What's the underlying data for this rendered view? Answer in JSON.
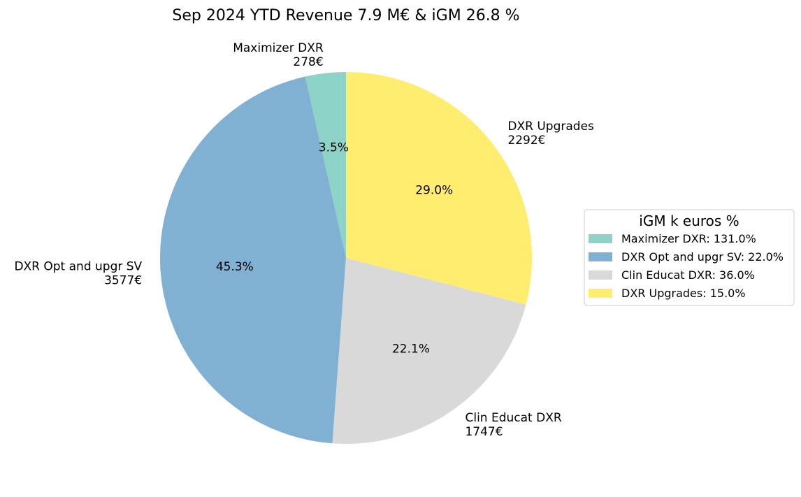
{
  "chart_data": {
    "type": "pie",
    "title": "Sep 2024 YTD Revenue 7.9 M€ & iGM 26.8 %",
    "slices": [
      {
        "label": "Maximizer DXR",
        "value": 278,
        "value_label": "278€",
        "pct_label": "3.5%",
        "color": "#8dd3c7"
      },
      {
        "label": "DXR Opt and upgr SV",
        "value": 3577,
        "value_label": "3577€",
        "pct_label": "45.3%",
        "color": "#80b1d3"
      },
      {
        "label": "Clin Educat DXR",
        "value": 1747,
        "value_label": "1747€",
        "pct_label": "22.1%",
        "color": "#d9d9d9"
      },
      {
        "label": "DXR Upgrades",
        "value": 2292,
        "value_label": "2292€",
        "pct_label": "29.0%",
        "color": "#ffed6f"
      }
    ],
    "start_angle_deg": 90,
    "direction": "counterclockwise",
    "legend": {
      "title": "iGM k euros %",
      "placement": "right",
      "entries": [
        "Maximizer DXR: 131.0%",
        "DXR Opt and upgr SV: 22.0%",
        "Clin Educat DXR: 36.0%",
        "DXR Upgrades: 15.0%"
      ]
    }
  }
}
